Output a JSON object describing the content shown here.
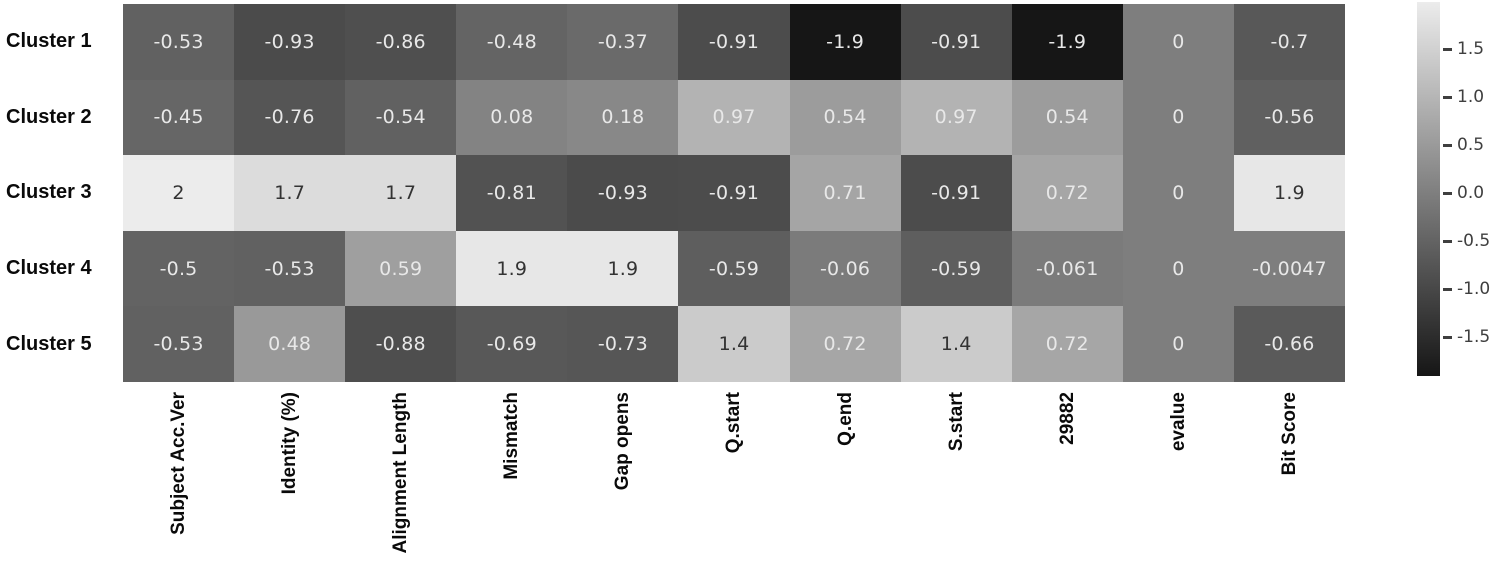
{
  "chart_data": {
    "type": "heatmap",
    "title": "",
    "xlabel": "",
    "ylabel": "",
    "rows": [
      "Cluster 1",
      "Cluster 2",
      "Cluster 3",
      "Cluster 4",
      "Cluster 5"
    ],
    "columns": [
      "Subject Acc.Ver",
      "Identity (%)",
      "Alignment Length",
      "Mismatch",
      "Gap opens",
      "Q.start",
      "Q.end",
      "S.start",
      "29882",
      "evalue",
      "Bit Score"
    ],
    "values": [
      [
        "-0.53",
        "-0.93",
        "-0.86",
        "-0.48",
        "-0.37",
        "-0.91",
        "-1.9",
        "-0.91",
        "-1.9",
        "0",
        "-0.7"
      ],
      [
        "-0.45",
        "-0.76",
        "-0.54",
        "0.08",
        "0.18",
        "0.97",
        "0.54",
        "0.97",
        "0.54",
        "0",
        "-0.56"
      ],
      [
        "2",
        "1.7",
        "1.7",
        "-0.81",
        "-0.93",
        "-0.91",
        "0.71",
        "-0.91",
        "0.72",
        "0",
        "1.9"
      ],
      [
        "-0.5",
        "-0.53",
        "0.59",
        "1.9",
        "1.9",
        "-0.59",
        "-0.06",
        "-0.59",
        "-0.061",
        "0",
        "-0.0047"
      ],
      [
        "-0.53",
        "0.48",
        "-0.88",
        "-0.69",
        "-0.73",
        "1.4",
        "0.72",
        "1.4",
        "0.72",
        "0",
        "-0.66"
      ]
    ],
    "vmin": -1.9,
    "vmax": 2.0,
    "grid_on": false,
    "colorbar": {
      "position": "right",
      "ticks": [
        "1.5",
        "1.0",
        "0.5",
        "0.0",
        "-0.5",
        "-1.0",
        "-1.5"
      ]
    },
    "colors": {
      "cmap_low": "#161616",
      "cmap_high": "#ececec",
      "annot_light": "#e8e8e8",
      "annot_dark": "#333333",
      "axis_label": "#0a0a0a",
      "tick_label": "#3f3f3f"
    }
  }
}
